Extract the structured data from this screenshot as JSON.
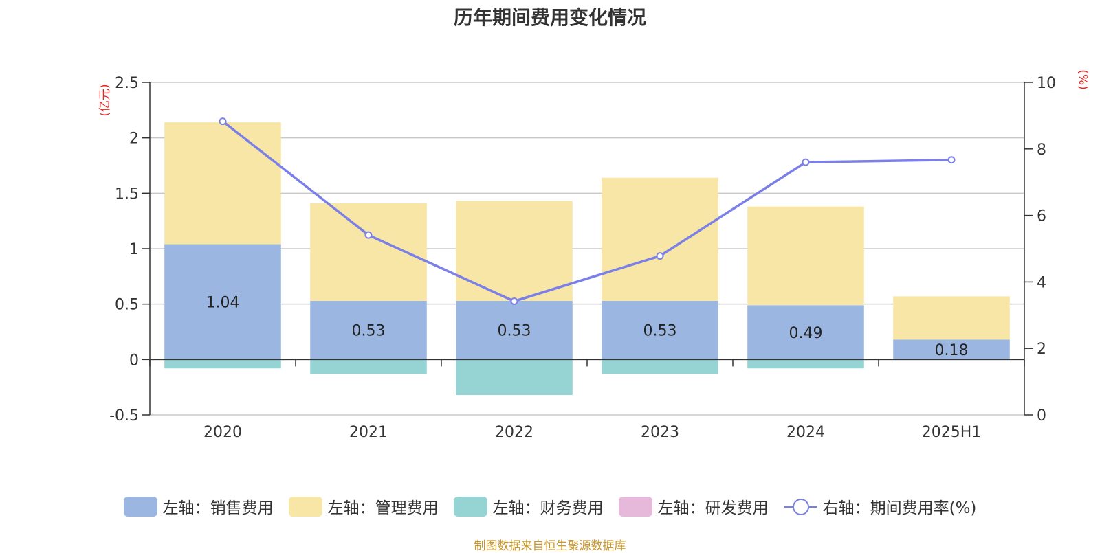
{
  "chart_data": {
    "type": "bar",
    "title": "历年期间费用变化情况",
    "categories": [
      "2020",
      "2021",
      "2022",
      "2023",
      "2024",
      "2025H1"
    ],
    "left_axis": {
      "unit_label": "(亿元)",
      "ylim": [
        -0.5,
        2.5
      ],
      "ticks": [
        "-0.5",
        "0",
        "0.5",
        "1",
        "1.5",
        "2",
        "2.5"
      ]
    },
    "right_axis": {
      "unit_label": "(%)",
      "ylim": [
        0,
        10
      ],
      "ticks": [
        "0",
        "2",
        "4",
        "6",
        "8",
        "10"
      ]
    },
    "series": [
      {
        "name": "左轴：销售费用",
        "type": "bar",
        "axis": "left",
        "color": "#9bb7e1",
        "values": [
          1.04,
          0.53,
          0.53,
          0.53,
          0.49,
          0.18
        ],
        "labels": [
          "1.04",
          "0.53",
          "0.53",
          "0.53",
          "0.49",
          "0.18"
        ]
      },
      {
        "name": "左轴：管理费用",
        "type": "bar",
        "axis": "left",
        "color": "#f7e6a6",
        "values": [
          1.1,
          0.88,
          0.9,
          1.11,
          0.89,
          0.39
        ]
      },
      {
        "name": "左轴：财务费用",
        "type": "bar",
        "axis": "left",
        "color": "#96d4d4",
        "values": [
          -0.08,
          -0.13,
          -0.32,
          -0.13,
          -0.08,
          0
        ]
      },
      {
        "name": "左轴：研发费用",
        "type": "bar",
        "axis": "left",
        "color": "#e6b8da",
        "values": [
          0,
          0,
          0,
          0,
          0,
          0
        ]
      },
      {
        "name": "右轴：期间费用率(%)",
        "type": "line",
        "axis": "right",
        "color": "#7b7fe8",
        "values": [
          8.83,
          5.41,
          3.42,
          4.78,
          7.6,
          7.67
        ]
      }
    ],
    "grid": true,
    "legend_position": "bottom"
  },
  "source_note": "制图数据来自恒生聚源数据库"
}
